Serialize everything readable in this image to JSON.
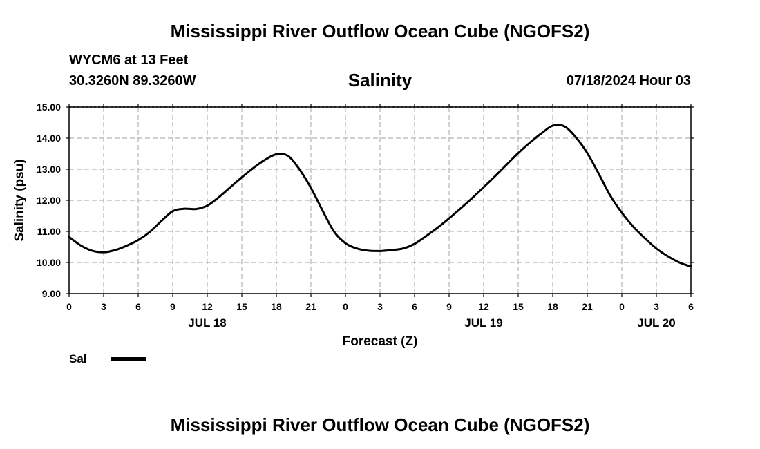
{
  "header": {
    "title": "Mississippi River Outflow Ocean Cube (NGOFS2)",
    "station": "WYCM6 at 13 Feet",
    "coordinates": "30.3260N  89.3260W",
    "date": "07/18/2024 Hour 03"
  },
  "footer": {
    "title": "Mississippi River Outflow Ocean Cube (NGOFS2)"
  },
  "chart_data": {
    "type": "line",
    "title": "Salinity",
    "xlabel": "Forecast (Z)",
    "ylabel": "Salinity (psu)",
    "xlim": [
      0,
      54
    ],
    "ylim": [
      9.0,
      15.0
    ],
    "grid": true,
    "x_ticks": [
      0,
      3,
      6,
      9,
      12,
      15,
      18,
      21,
      24,
      27,
      30,
      33,
      36,
      39,
      42,
      45,
      48,
      51,
      54
    ],
    "x_tick_labels": [
      "0",
      "3",
      "6",
      "9",
      "12",
      "15",
      "18",
      "21",
      "0",
      "3",
      "6",
      "9",
      "12",
      "15",
      "18",
      "21",
      "0",
      "3",
      "6"
    ],
    "y_ticks": [
      9.0,
      10.0,
      11.0,
      12.0,
      13.0,
      14.0,
      15.0
    ],
    "y_tick_labels": [
      "9.00",
      "10.00",
      "11.00",
      "12.00",
      "13.00",
      "14.00",
      "15.00"
    ],
    "day_labels": [
      {
        "x": 12,
        "label": "JUL 18"
      },
      {
        "x": 36,
        "label": "JUL 19"
      },
      {
        "x": 51,
        "label": "JUL 20"
      }
    ],
    "legend": {
      "position": "bottom-left",
      "label": "Sal",
      "color": "#000000"
    },
    "series": [
      {
        "name": "Sal",
        "color": "#000000",
        "x": [
          0,
          1,
          2,
          3,
          4,
          5,
          6,
          7,
          8,
          9,
          10,
          11,
          12,
          13,
          14,
          15,
          16,
          17,
          18,
          19,
          20,
          21,
          22,
          23,
          24,
          25,
          26,
          27,
          28,
          29,
          30,
          31,
          32,
          33,
          34,
          35,
          36,
          37,
          38,
          39,
          40,
          41,
          42,
          43,
          44,
          45,
          46,
          47,
          48,
          49,
          50,
          51,
          52,
          53,
          54
        ],
        "values": [
          10.82,
          10.55,
          10.38,
          10.33,
          10.4,
          10.54,
          10.72,
          10.98,
          11.33,
          11.65,
          11.73,
          11.72,
          11.83,
          12.1,
          12.42,
          12.74,
          13.04,
          13.3,
          13.48,
          13.43,
          13.0,
          12.4,
          11.68,
          11.0,
          10.62,
          10.45,
          10.38,
          10.37,
          10.4,
          10.45,
          10.6,
          10.85,
          11.12,
          11.42,
          11.74,
          12.07,
          12.42,
          12.78,
          13.15,
          13.52,
          13.85,
          14.15,
          14.4,
          14.38,
          14.03,
          13.52,
          12.85,
          12.15,
          11.6,
          11.15,
          10.78,
          10.45,
          10.2,
          10.0,
          9.87
        ]
      }
    ]
  }
}
